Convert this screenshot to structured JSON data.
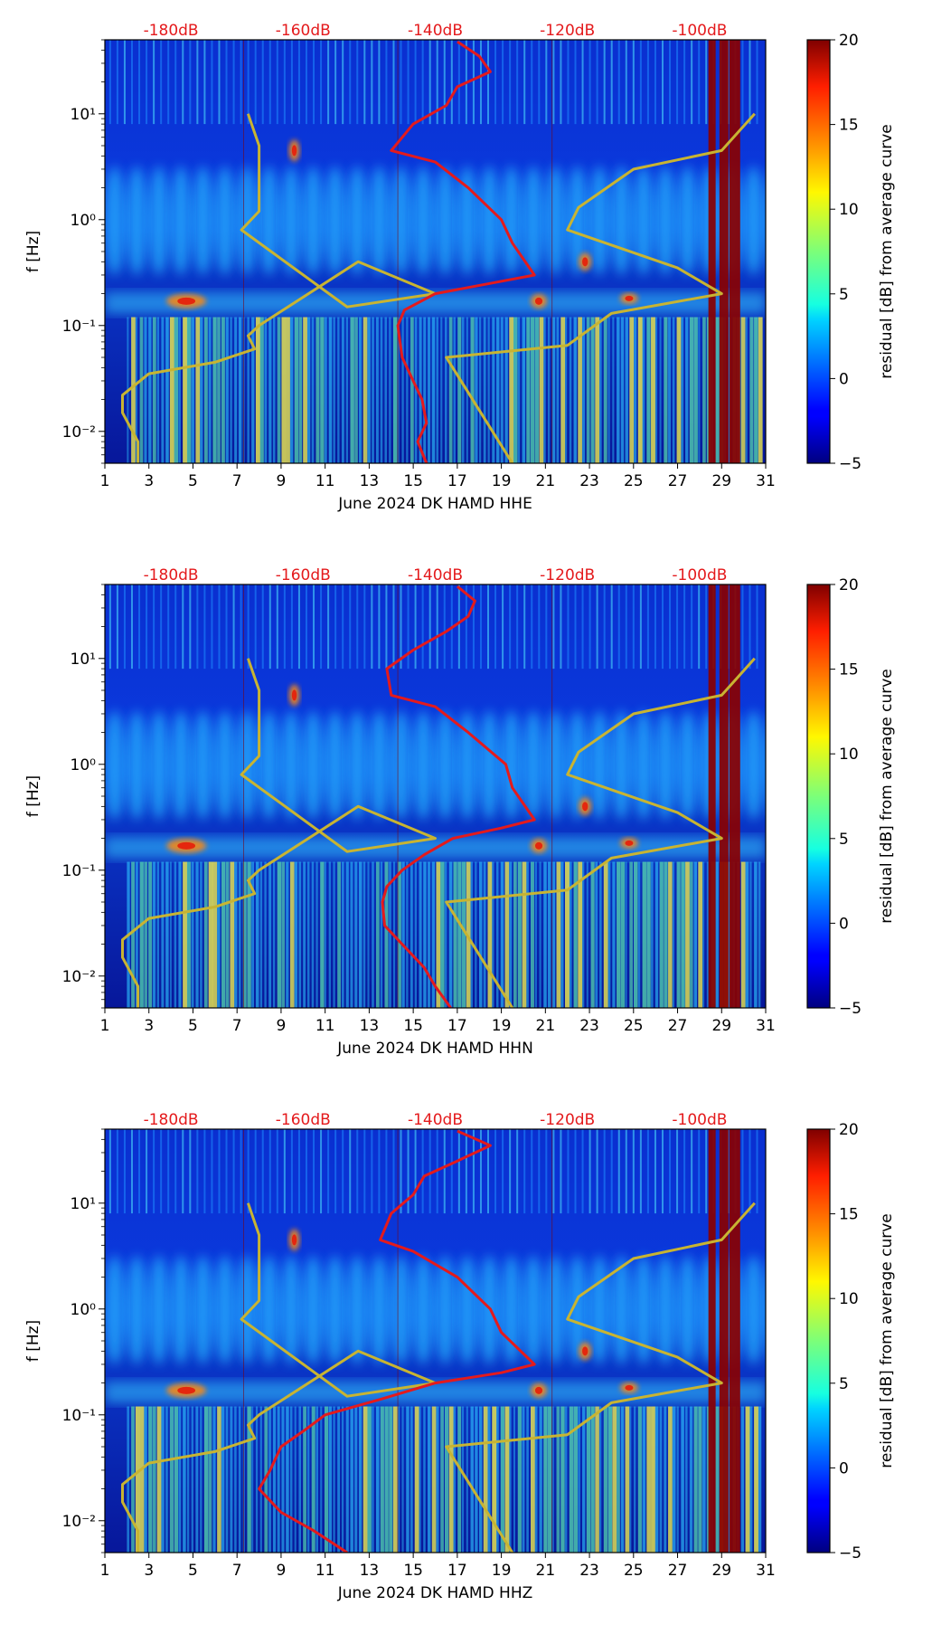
{
  "chart_data": [
    {
      "type": "heatmap",
      "xlabel": "June 2024 DK HAMD  HHE",
      "ylabel": "f [Hz]",
      "colorbar_label": "residual [dB] from average curve",
      "colorbar_ticks": [
        "20",
        "15",
        "10",
        "5",
        "0",
        "−5"
      ],
      "colorbar_range": [
        -5,
        20
      ],
      "x_ticks": [
        "1",
        "3",
        "5",
        "7",
        "9",
        "11",
        "13",
        "15",
        "17",
        "19",
        "21",
        "23",
        "25",
        "27",
        "29",
        "31"
      ],
      "xlim": [
        1,
        31
      ],
      "y_ticks": [
        "10¹",
        "10⁰",
        "10⁻¹",
        "10⁻²"
      ],
      "ylim_hz": [
        0.005,
        50
      ],
      "top_labels": [
        "-180dB",
        "-160dB",
        "-140dB",
        "-120dB",
        "-100dB"
      ],
      "top_label_days": [
        4.0,
        10.0,
        16.0,
        22.0,
        28.0
      ],
      "noise_model_days": [
        2.5,
        2.5,
        1.8,
        1.8,
        3.0,
        6.0,
        7.8,
        7.5,
        8.0,
        12.5,
        16.0,
        12.0,
        7.2,
        8.0,
        8.0,
        7.5
      ],
      "psd_days": [
        15.6,
        15.2,
        15.6,
        15.4,
        15.0,
        14.5,
        14.4,
        14.3,
        14.6,
        16.0,
        18.5,
        20.5,
        19.5,
        19.0,
        17.5,
        16.0,
        14.0,
        15.0,
        16.5,
        17.0,
        18.5,
        18.0,
        17.0
      ],
      "nhnm_days": [
        19.5,
        16.5,
        22.0,
        24.0,
        29.0,
        27.0,
        22.0,
        22.5,
        25.0,
        29.0,
        30.5
      ]
    },
    {
      "type": "heatmap",
      "xlabel": "June 2024 DK HAMD  HHN",
      "ylabel": "f [Hz]",
      "colorbar_label": "residual [dB] from average curve",
      "colorbar_ticks": [
        "20",
        "15",
        "10",
        "5",
        "0",
        "−5"
      ],
      "colorbar_range": [
        -5,
        20
      ],
      "x_ticks": [
        "1",
        "3",
        "5",
        "7",
        "9",
        "11",
        "13",
        "15",
        "17",
        "19",
        "21",
        "23",
        "25",
        "27",
        "29",
        "31"
      ],
      "xlim": [
        1,
        31
      ],
      "y_ticks": [
        "10¹",
        "10⁰",
        "10⁻¹",
        "10⁻²"
      ],
      "ylim_hz": [
        0.005,
        50
      ],
      "top_labels": [
        "-180dB",
        "-160dB",
        "-140dB",
        "-120dB",
        "-100dB"
      ],
      "top_label_days": [
        4.0,
        10.0,
        16.0,
        22.0,
        28.0
      ],
      "noise_model_days": [
        2.5,
        2.5,
        1.8,
        1.8,
        3.0,
        6.0,
        7.8,
        7.5,
        8.0,
        12.5,
        16.0,
        12.0,
        7.2,
        8.0,
        8.0,
        7.5
      ],
      "psd_days": [
        16.7,
        16.0,
        15.5,
        14.5,
        13.7,
        13.6,
        13.8,
        14.5,
        15.5,
        16.8,
        19.0,
        20.5,
        19.5,
        19.2,
        17.5,
        16.0,
        14.0,
        13.8,
        15.0,
        16.5,
        17.5,
        17.8,
        17.0
      ],
      "nhnm_days": [
        19.5,
        16.5,
        22.0,
        24.0,
        29.0,
        27.0,
        22.0,
        22.5,
        25.0,
        29.0,
        30.5
      ]
    },
    {
      "type": "heatmap",
      "xlabel": "June 2024 DK HAMD  HHZ",
      "ylabel": "f [Hz]",
      "colorbar_label": "residual [dB] from average curve",
      "colorbar_ticks": [
        "20",
        "15",
        "10",
        "5",
        "0",
        "−5"
      ],
      "colorbar_range": [
        -5,
        20
      ],
      "x_ticks": [
        "1",
        "3",
        "5",
        "7",
        "9",
        "11",
        "13",
        "15",
        "17",
        "19",
        "21",
        "23",
        "25",
        "27",
        "29",
        "31"
      ],
      "xlim": [
        1,
        31
      ],
      "y_ticks": [
        "10¹",
        "10⁰",
        "10⁻¹",
        "10⁻²"
      ],
      "ylim_hz": [
        0.005,
        50
      ],
      "top_labels": [
        "-180dB",
        "-160dB",
        "-140dB",
        "-120dB",
        "-100dB"
      ],
      "top_label_days": [
        4.0,
        10.0,
        16.0,
        22.0,
        28.0
      ],
      "noise_model_days": [
        2.5,
        2.5,
        1.8,
        1.8,
        3.0,
        6.0,
        7.8,
        7.5,
        8.0,
        12.5,
        16.0,
        12.0,
        7.2,
        8.0,
        8.0,
        7.5
      ],
      "psd_days": [
        12.0,
        10.5,
        9.0,
        8.0,
        8.5,
        9.0,
        10.0,
        11.0,
        13.5,
        16.0,
        19.0,
        20.5,
        19.0,
        18.5,
        17.0,
        15.0,
        13.5,
        14.0,
        15.0,
        15.5,
        17.0,
        18.5,
        17.0
      ],
      "nhnm_days": [
        19.5,
        16.5,
        22.0,
        24.0,
        29.0,
        27.0,
        22.0,
        22.5,
        25.0,
        29.0,
        30.5
      ]
    }
  ],
  "colors": {
    "red_curve": "#e41a1c",
    "model_curve": "#c8b432",
    "top_label": "#e41a1c"
  }
}
